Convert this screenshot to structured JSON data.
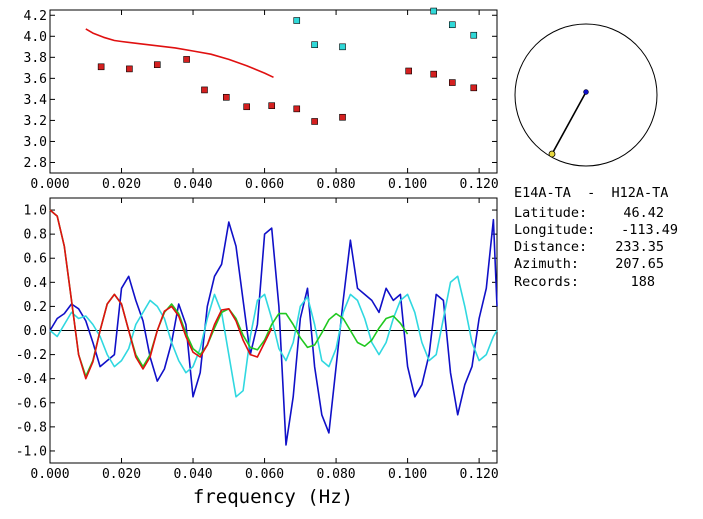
{
  "chart_data": [
    {
      "type": "scatter",
      "xlabel": "",
      "ylabel": "",
      "xlim": [
        0.0,
        0.125
      ],
      "ylim": [
        2.7,
        4.25
      ],
      "x_ticks": [
        "0.000",
        "0.020",
        "0.040",
        "0.060",
        "0.080",
        "0.100",
        "0.120"
      ],
      "y_ticks": [
        "2.8",
        "3.0",
        "3.2",
        "3.4",
        "3.6",
        "3.8",
        "4.0",
        "4.2"
      ],
      "grid": false,
      "series": [
        {
          "kind": "line",
          "color": "#e01010",
          "x": [
            0.01,
            0.012,
            0.015,
            0.018,
            0.02,
            0.025,
            0.03,
            0.035,
            0.04,
            0.045,
            0.05,
            0.055,
            0.06,
            0.0625
          ],
          "y": [
            4.07,
            4.03,
            3.99,
            3.96,
            3.95,
            3.93,
            3.91,
            3.89,
            3.86,
            3.83,
            3.78,
            3.72,
            3.65,
            3.61
          ]
        },
        {
          "kind": "points",
          "color": "#d42020",
          "x": [
            0.0143,
            0.0222,
            0.03,
            0.0382,
            0.0432,
            0.0493,
            0.055,
            0.062,
            0.069,
            0.074,
            0.0818,
            0.1003,
            0.1073,
            0.1125,
            0.1185
          ],
          "y": [
            3.71,
            3.69,
            3.73,
            3.78,
            3.49,
            3.42,
            3.33,
            3.34,
            3.31,
            3.19,
            3.23,
            3.67,
            3.64,
            3.56,
            3.51
          ]
        },
        {
          "kind": "points",
          "color": "#30d8d8",
          "x": [
            0.069,
            0.074,
            0.0818,
            0.1073,
            0.1125,
            0.1185
          ],
          "y": [
            4.15,
            3.92,
            3.9,
            4.24,
            4.11,
            4.01
          ]
        }
      ]
    },
    {
      "type": "line",
      "xlabel": "frequency (Hz)",
      "ylabel": "",
      "xlim": [
        0.0,
        0.125
      ],
      "ylim": [
        -1.1,
        1.1
      ],
      "x_ticks": [
        "0.000",
        "0.020",
        "0.040",
        "0.060",
        "0.080",
        "0.100",
        "0.120"
      ],
      "y_ticks": [
        "-1.0",
        "-0.8",
        "-0.6",
        "-0.4",
        "-0.2",
        "0.0",
        "0.2",
        "0.4",
        "0.6",
        "0.8",
        "1.0"
      ],
      "grid": false,
      "zero_line": true,
      "series": [
        {
          "color": "#1010c8",
          "x": [
            0.0,
            0.002,
            0.004,
            0.006,
            0.008,
            0.01,
            0.012,
            0.014,
            0.016,
            0.018,
            0.02,
            0.022,
            0.024,
            0.026,
            0.028,
            0.03,
            0.032,
            0.034,
            0.036,
            0.038,
            0.04,
            0.042,
            0.044,
            0.046,
            0.048,
            0.05,
            0.052,
            0.054,
            0.056,
            0.058,
            0.06,
            0.062,
            0.064,
            0.066,
            0.068,
            0.07,
            0.072,
            0.074,
            0.076,
            0.078,
            0.08,
            0.082,
            0.084,
            0.086,
            0.088,
            0.09,
            0.092,
            0.094,
            0.096,
            0.098,
            0.1,
            0.102,
            0.104,
            0.106,
            0.108,
            0.11,
            0.112,
            0.114,
            0.116,
            0.118,
            0.12,
            0.122,
            0.124,
            0.125
          ],
          "y": [
            0.0,
            0.1,
            0.14,
            0.22,
            0.18,
            0.08,
            -0.1,
            -0.3,
            -0.25,
            -0.2,
            0.35,
            0.45,
            0.25,
            0.08,
            -0.22,
            -0.42,
            -0.32,
            -0.1,
            0.22,
            0.05,
            -0.55,
            -0.35,
            0.2,
            0.45,
            0.55,
            0.9,
            0.7,
            0.25,
            -0.2,
            0.05,
            0.8,
            0.85,
            0.2,
            -0.95,
            -0.55,
            0.1,
            0.35,
            -0.3,
            -0.7,
            -0.85,
            -0.3,
            0.25,
            0.75,
            0.35,
            0.3,
            0.25,
            0.15,
            0.35,
            0.25,
            0.3,
            -0.3,
            -0.55,
            -0.45,
            -0.2,
            0.3,
            0.25,
            -0.35,
            -0.7,
            -0.45,
            -0.3,
            0.1,
            0.35,
            0.92,
            0.2
          ]
        },
        {
          "color": "#30d8e0",
          "x": [
            0.0,
            0.002,
            0.004,
            0.006,
            0.008,
            0.01,
            0.012,
            0.014,
            0.016,
            0.018,
            0.02,
            0.022,
            0.024,
            0.026,
            0.028,
            0.03,
            0.032,
            0.034,
            0.036,
            0.038,
            0.04,
            0.042,
            0.044,
            0.046,
            0.048,
            0.05,
            0.052,
            0.054,
            0.056,
            0.058,
            0.06,
            0.062,
            0.064,
            0.066,
            0.068,
            0.07,
            0.072,
            0.074,
            0.076,
            0.078,
            0.08,
            0.082,
            0.084,
            0.086,
            0.088,
            0.09,
            0.092,
            0.094,
            0.096,
            0.098,
            0.1,
            0.102,
            0.104,
            0.106,
            0.108,
            0.11,
            0.112,
            0.114,
            0.116,
            0.118,
            0.12,
            0.122,
            0.124,
            0.125
          ],
          "y": [
            0.0,
            -0.05,
            0.05,
            0.15,
            0.1,
            0.12,
            0.05,
            -0.05,
            -0.2,
            -0.3,
            -0.25,
            -0.15,
            0.05,
            0.15,
            0.25,
            0.2,
            0.1,
            -0.1,
            -0.25,
            -0.35,
            -0.3,
            -0.15,
            0.1,
            0.3,
            0.15,
            -0.2,
            -0.55,
            -0.5,
            -0.05,
            0.25,
            0.3,
            0.1,
            -0.15,
            -0.25,
            -0.1,
            0.2,
            0.28,
            0.05,
            -0.25,
            -0.3,
            -0.15,
            0.15,
            0.3,
            0.25,
            0.1,
            -0.1,
            -0.2,
            -0.1,
            0.1,
            0.25,
            0.3,
            0.15,
            -0.1,
            -0.25,
            -0.2,
            0.1,
            0.4,
            0.45,
            0.2,
            -0.1,
            -0.25,
            -0.2,
            -0.05,
            0.0
          ]
        },
        {
          "color": "#20c820",
          "x": [
            0.0,
            0.002,
            0.004,
            0.006,
            0.008,
            0.01,
            0.012,
            0.014,
            0.016,
            0.018,
            0.02,
            0.022,
            0.024,
            0.026,
            0.028,
            0.03,
            0.032,
            0.034,
            0.036,
            0.038,
            0.04,
            0.042,
            0.044,
            0.046,
            0.048,
            0.05,
            0.052,
            0.054,
            0.056,
            0.058,
            0.06,
            0.062,
            0.064,
            0.066,
            0.068,
            0.07,
            0.072,
            0.074,
            0.076,
            0.078,
            0.08,
            0.082,
            0.084,
            0.086,
            0.088,
            0.09,
            0.092,
            0.094,
            0.096,
            0.098,
            0.1
          ],
          "y": [
            1.0,
            0.95,
            0.7,
            0.25,
            -0.2,
            -0.38,
            -0.25,
            0.0,
            0.22,
            0.3,
            0.22,
            0.0,
            -0.2,
            -0.3,
            -0.2,
            0.0,
            0.15,
            0.22,
            0.14,
            -0.02,
            -0.15,
            -0.2,
            -0.12,
            0.02,
            0.15,
            0.18,
            0.1,
            -0.04,
            -0.14,
            -0.16,
            -0.08,
            0.05,
            0.14,
            0.14,
            0.05,
            -0.06,
            -0.14,
            -0.12,
            -0.02,
            0.09,
            0.14,
            0.1,
            0.0,
            -0.1,
            -0.13,
            -0.08,
            0.02,
            0.1,
            0.12,
            0.06,
            -0.03
          ]
        },
        {
          "color": "#e01010",
          "x": [
            0.0,
            0.002,
            0.004,
            0.006,
            0.008,
            0.01,
            0.012,
            0.014,
            0.016,
            0.018,
            0.02,
            0.022,
            0.024,
            0.026,
            0.028,
            0.03,
            0.032,
            0.034,
            0.036,
            0.038,
            0.04,
            0.042,
            0.044,
            0.046,
            0.048,
            0.05,
            0.052,
            0.054,
            0.056,
            0.058,
            0.06,
            0.062
          ],
          "y": [
            1.0,
            0.95,
            0.7,
            0.25,
            -0.2,
            -0.4,
            -0.26,
            0.0,
            0.22,
            0.3,
            0.22,
            0.0,
            -0.22,
            -0.32,
            -0.22,
            0.0,
            0.16,
            0.2,
            0.12,
            -0.05,
            -0.18,
            -0.22,
            -0.12,
            0.05,
            0.17,
            0.18,
            0.08,
            -0.08,
            -0.2,
            -0.22,
            -0.1,
            0.02
          ]
        }
      ]
    }
  ],
  "map": {
    "point_colors": {
      "station_a": "#e8d840",
      "station_b": "#1010c8"
    }
  },
  "info": {
    "pair": "E14A-TA  -  H12A-TA",
    "latitude_label": "Latitude:",
    "latitude_value": "46.42",
    "longitude_label": "Longitude:",
    "longitude_value": "-113.49",
    "distance_label": "Distance:",
    "distance_value": "233.35",
    "azimuth_label": "Azimuth:",
    "azimuth_value": "207.65",
    "records_label": "Records:",
    "records_value": "188"
  }
}
